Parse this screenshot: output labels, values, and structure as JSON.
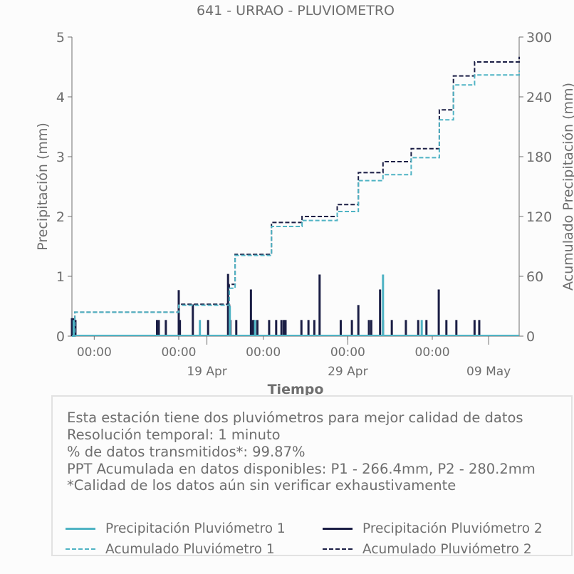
{
  "chart_data": {
    "type": "line",
    "title": "641 - URRAO - PLUVIOMETRO",
    "xlabel": "Tiempo",
    "ylabel": "Precipitación (mm)",
    "y2label": "Acumulado Precipitación (mm)",
    "ylim": [
      0,
      5
    ],
    "y2lim": [
      0,
      300
    ],
    "xlim": [
      "2026-04-09T10:00",
      "2026-05-11T04:00"
    ],
    "yticks": [
      "0",
      "1",
      "2",
      "3",
      "4",
      "5"
    ],
    "y2ticks": [
      "0",
      "60",
      "120",
      "180",
      "240",
      "300"
    ],
    "xticks": [
      {
        "t": "2026-04-11T00:00",
        "label": "00:00"
      },
      {
        "t": "2026-04-17T00:00",
        "label": "00:00"
      },
      {
        "t": "2026-04-23T00:00",
        "label": "00:00"
      },
      {
        "t": "2026-04-29T00:00",
        "label": "00:00"
      },
      {
        "t": "2026-05-05T00:00",
        "label": "00:00"
      }
    ],
    "xticks_major": [
      {
        "t": "2026-04-19T00:00",
        "label": "19 Apr"
      },
      {
        "t": "2026-04-29T00:00",
        "label": "29 Apr"
      },
      {
        "t": "2026-05-09T00:00",
        "label": "09 May"
      }
    ],
    "grid": false,
    "colors": {
      "p1": "#4fb3c4",
      "p2": "#1b1e45"
    },
    "series": [
      {
        "name": "Precipitación Pluviómetro 2",
        "axis": "left",
        "style": "bars",
        "x": [
          "2026-04-09T10:00",
          "2026-04-09T12:00",
          "2026-04-09T14:00",
          "2026-04-09T16:00",
          "2026-04-15T11:00",
          "2026-04-15T14:00",
          "2026-04-16T02:00",
          "2026-04-17T00:00",
          "2026-04-17T02:00",
          "2026-04-18T00:00",
          "2026-04-19T02:00",
          "2026-04-20T12:00",
          "2026-04-20T14:00",
          "2026-04-20T16:00",
          "2026-04-21T02:00",
          "2026-04-22T03:00",
          "2026-04-22T06:00",
          "2026-04-22T08:00",
          "2026-04-22T14:00",
          "2026-04-23T10:00",
          "2026-04-23T22:00",
          "2026-04-24T07:00",
          "2026-04-24T11:00",
          "2026-04-24T14:00",
          "2026-04-25T17:00",
          "2026-04-26T05:00",
          "2026-04-26T15:00",
          "2026-04-27T00:00",
          "2026-04-28T12:00",
          "2026-04-29T07:00",
          "2026-04-29T18:00",
          "2026-04-30T12:00",
          "2026-04-30T16:00",
          "2026-05-01T07:00",
          "2026-05-01T12:00",
          "2026-05-02T03:00",
          "2026-05-03T03:00",
          "2026-05-04T00:00",
          "2026-05-04T14:00",
          "2026-05-05T11:00",
          "2026-05-06T00:00",
          "2026-05-06T17:00",
          "2026-05-08T00:00",
          "2026-05-08T08:00"
        ],
        "values": [
          0.3,
          0.3,
          0.27,
          0.27,
          0.27,
          0.27,
          0.27,
          0.77,
          0.27,
          0.53,
          0.27,
          1.04,
          0.53,
          0.27,
          0.27,
          0.78,
          0.27,
          0.27,
          0.27,
          0.27,
          0.27,
          0.27,
          0.27,
          0.27,
          0.27,
          0.27,
          0.27,
          1.03,
          0.27,
          0.27,
          0.52,
          0.27,
          0.27,
          0.78,
          0.27,
          0.27,
          0.27,
          0.27,
          0.27,
          0.78,
          0.27,
          0.27,
          0.27,
          0.27
        ]
      },
      {
        "name": "Precipitación Pluviómetro 1",
        "axis": "left",
        "style": "bars",
        "x": [
          "2026-04-09T13:00",
          "2026-04-18T12:00",
          "2026-04-20T15:00",
          "2026-04-22T10:00",
          "2026-05-01T12:00",
          "2026-05-04T06:00"
        ],
        "values": [
          0.27,
          0.27,
          0.5,
          0.27,
          1.03,
          0.27
        ]
      },
      {
        "name": "Acumulado Pluviómetro 2",
        "axis": "right",
        "style": "dashed-step",
        "x": [
          "2026-04-09T10:00",
          "2026-04-09T15:00",
          "2026-04-15T12:00",
          "2026-04-17T00:00",
          "2026-04-18T12:00",
          "2026-04-20T14:00",
          "2026-04-21T00:00",
          "2026-04-22T03:00",
          "2026-04-23T14:00",
          "2026-04-24T12:00",
          "2026-04-25T18:00",
          "2026-04-27T00:00",
          "2026-04-28T06:00",
          "2026-04-29T18:00",
          "2026-05-01T12:00",
          "2026-05-03T12:00",
          "2026-05-04T14:00",
          "2026-05-05T12:00",
          "2026-05-06T12:00",
          "2026-05-08T00:00",
          "2026-05-11T04:00"
        ],
        "values": [
          0,
          24,
          24,
          32,
          32,
          52,
          82,
          82,
          114,
          114,
          120,
          120,
          132,
          164,
          175,
          188,
          188,
          227,
          261,
          275,
          280.2
        ]
      },
      {
        "name": "Acumulado Pluviómetro 1",
        "axis": "right",
        "style": "dashed-step",
        "x": [
          "2026-04-09T10:00",
          "2026-04-09T15:00",
          "2026-04-15T12:00",
          "2026-04-17T00:00",
          "2026-04-18T12:00",
          "2026-04-20T14:00",
          "2026-04-21T00:00",
          "2026-04-22T03:00",
          "2026-04-23T14:00",
          "2026-04-24T12:00",
          "2026-04-25T18:00",
          "2026-04-27T00:00",
          "2026-04-28T06:00",
          "2026-04-29T18:00",
          "2026-05-01T12:00",
          "2026-05-03T12:00",
          "2026-05-04T14:00",
          "2026-05-05T12:00",
          "2026-05-06T12:00",
          "2026-05-08T00:00",
          "2026-05-11T04:00"
        ],
        "values": [
          0,
          24,
          24,
          31,
          31,
          48,
          81,
          81,
          110,
          110,
          116,
          116,
          125,
          156,
          162,
          179,
          179,
          217,
          252,
          262,
          266.4
        ]
      }
    ]
  },
  "notes": {
    "line1": "Esta estación tiene dos pluviómetros para mejor calidad de datos",
    "line2": "Resolución temporal: 1 minuto",
    "line3": "% de datos transmitidos*: 99.87%",
    "line4": "PPT Acumulada en datos disponibles: P1 - 266.4mm, P2 - 280.2mm",
    "line5": "*Calidad de los datos aún sin verificar exhaustivamente"
  },
  "legend": {
    "p1_precip": "Precipitación Pluviómetro 1",
    "p2_precip": "Precipitación Pluviómetro 2",
    "p1_acum": "Acumulado Pluviómetro 1",
    "p2_acum": "Acumulado Pluviómetro 2"
  }
}
